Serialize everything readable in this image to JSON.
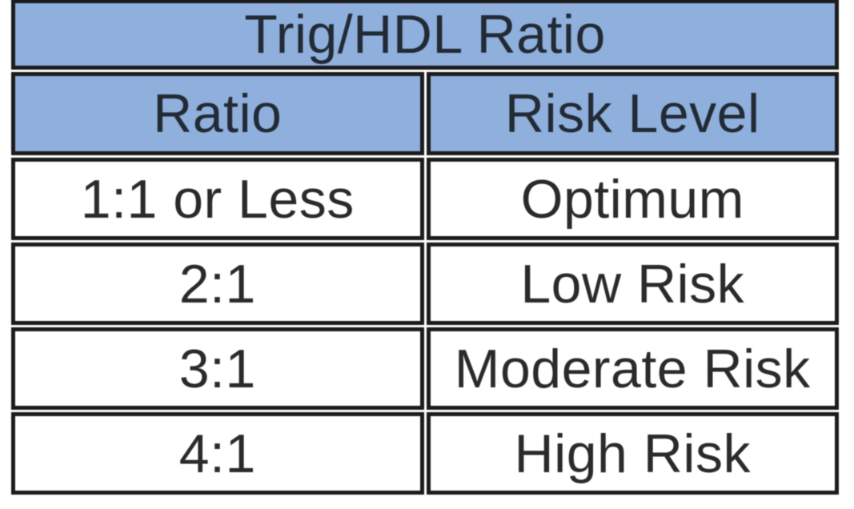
{
  "chart_data": {
    "type": "table",
    "title": "Trig/HDL Ratio",
    "columns": [
      "Ratio",
      "Risk Level"
    ],
    "rows": [
      [
        "1:1 or Less",
        "Optimum"
      ],
      [
        "2:1",
        "Low Risk"
      ],
      [
        "3:1",
        "Moderate Risk"
      ],
      [
        "4:1",
        "High Risk"
      ]
    ],
    "layout_hints": {
      "header_bg": "#8fafdd",
      "border_color": "#1c1c1c",
      "text_color": "#2a2a2a",
      "background": "#ffffff",
      "title_spans_both_columns": true
    }
  }
}
